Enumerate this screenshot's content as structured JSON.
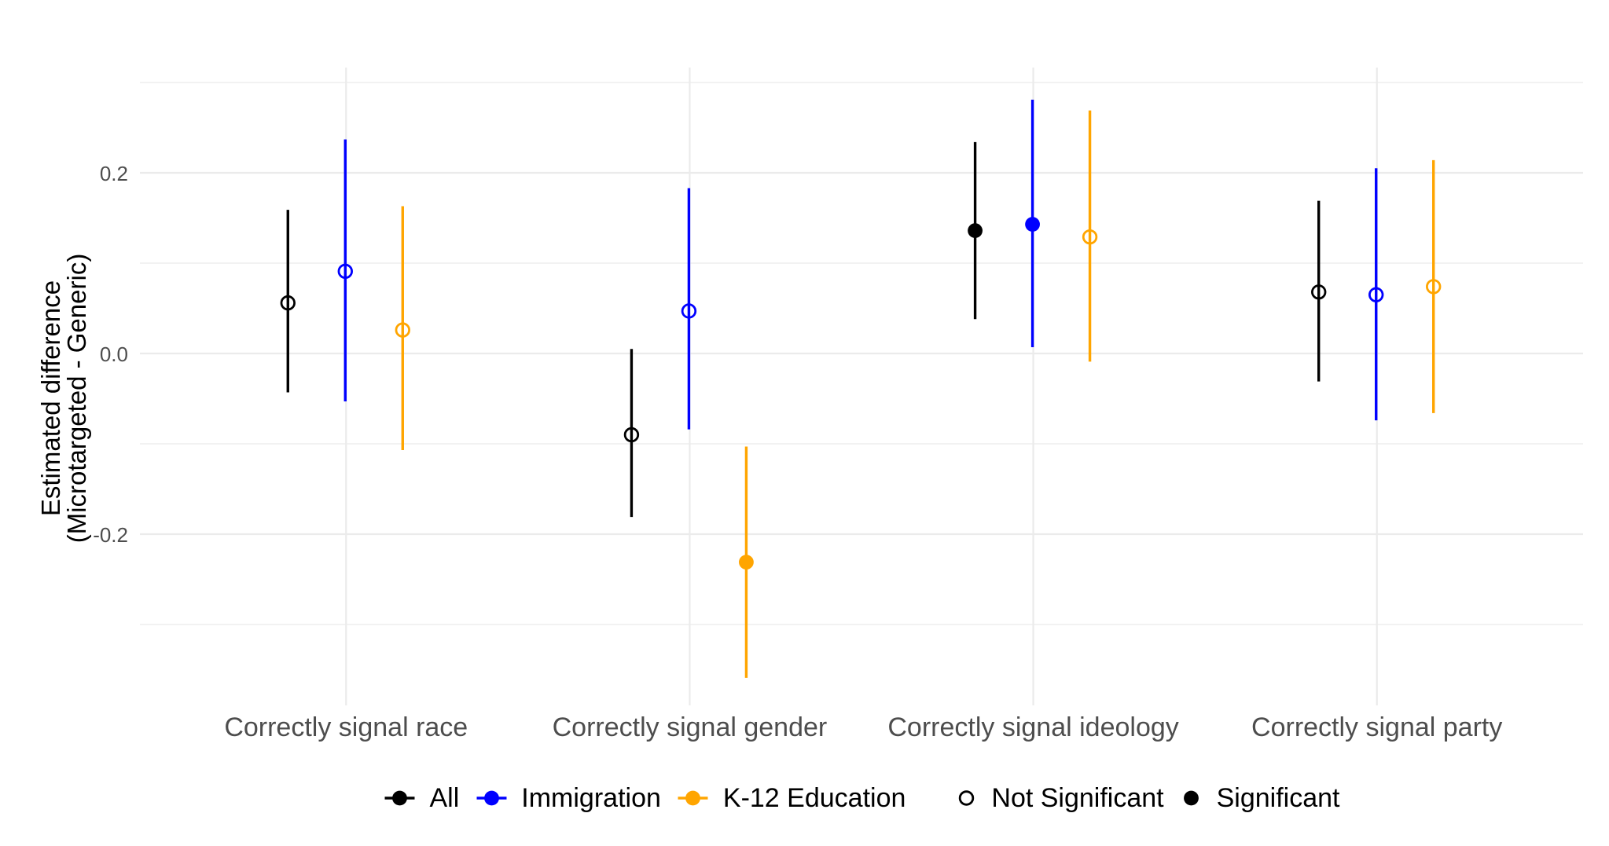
{
  "chart_data": {
    "type": "pointrange",
    "title": "",
    "xlabel": "",
    "ylabel_line1": "Estimated difference",
    "ylabel_line2": "(Microtargeted - Generic)",
    "categories": [
      "Correctly signal race",
      "Correctly signal gender",
      "Correctly signal ideology",
      "Correctly signal party"
    ],
    "y_axis": {
      "tick_labels": [
        "0.2",
        "0.0",
        "-0.2"
      ],
      "major_breaks": [
        0.2,
        0.0,
        -0.2
      ],
      "minor_breaks": [
        0.3,
        0.1,
        -0.1,
        -0.3
      ],
      "ylim": [
        -0.392,
        0.317
      ]
    },
    "grid": true,
    "legend_position": "bottom",
    "series": [
      {
        "name": "All",
        "color": "#000000",
        "points": [
          {
            "category": "Correctly signal race",
            "est": 0.056,
            "lo": -0.043,
            "hi": 0.159,
            "significant": false
          },
          {
            "category": "Correctly signal gender",
            "est": -0.09,
            "lo": -0.181,
            "hi": 0.005,
            "significant": false
          },
          {
            "category": "Correctly signal ideology",
            "est": 0.136,
            "lo": 0.038,
            "hi": 0.234,
            "significant": true
          },
          {
            "category": "Correctly signal party",
            "est": 0.068,
            "lo": -0.031,
            "hi": 0.169,
            "significant": false
          }
        ]
      },
      {
        "name": "Immigration",
        "color": "#0000FF",
        "points": [
          {
            "category": "Correctly signal race",
            "est": 0.091,
            "lo": -0.053,
            "hi": 0.237,
            "significant": false
          },
          {
            "category": "Correctly signal gender",
            "est": 0.047,
            "lo": -0.084,
            "hi": 0.183,
            "significant": false
          },
          {
            "category": "Correctly signal ideology",
            "est": 0.143,
            "lo": 0.007,
            "hi": 0.281,
            "significant": true
          },
          {
            "category": "Correctly signal party",
            "est": 0.065,
            "lo": -0.074,
            "hi": 0.205,
            "significant": false
          }
        ]
      },
      {
        "name": "K-12 Education",
        "color": "#FFA500",
        "points": [
          {
            "category": "Correctly signal race",
            "est": 0.026,
            "lo": -0.107,
            "hi": 0.163,
            "significant": false
          },
          {
            "category": "Correctly signal gender",
            "est": -0.231,
            "lo": -0.359,
            "hi": -0.103,
            "significant": true
          },
          {
            "category": "Correctly signal ideology",
            "est": 0.129,
            "lo": -0.009,
            "hi": 0.269,
            "significant": false
          },
          {
            "category": "Correctly signal party",
            "est": 0.074,
            "lo": -0.066,
            "hi": 0.214,
            "significant": false
          }
        ]
      }
    ],
    "shape_legend": [
      {
        "label": "Not Significant",
        "filled": false
      },
      {
        "label": "Significant",
        "filled": true
      }
    ]
  },
  "colors": {
    "background": "#FFFFFF",
    "grid": "#EBEBEB",
    "axis_text": "#4D4D4D",
    "axis_title": "#000000",
    "legend_text": "#000000"
  }
}
